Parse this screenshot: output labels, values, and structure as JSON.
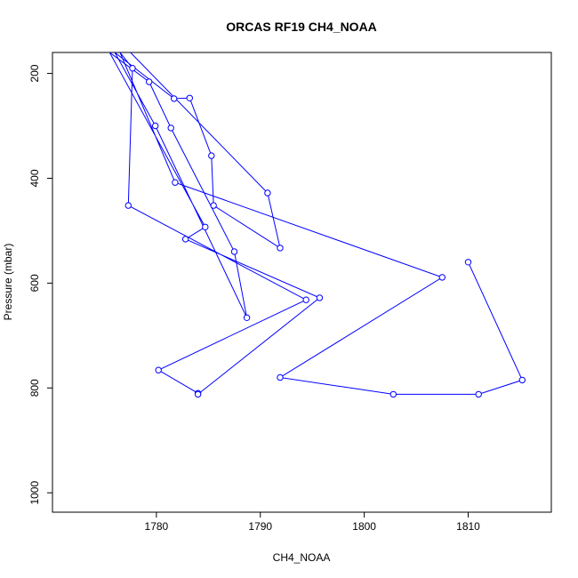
{
  "chart_data": {
    "type": "line",
    "title": "ORCAS RF19 CH4_NOAA",
    "xlabel": "CH4_NOAA",
    "ylabel": "Pressure (mbar)",
    "xlim": [
      1770,
      1818
    ],
    "ylim": [
      1037,
      160
    ],
    "y_reversed": true,
    "x_ticks": [
      1780,
      1790,
      1800,
      1810
    ],
    "y_ticks": [
      200,
      400,
      600,
      800,
      1000
    ],
    "grid": false,
    "legend": "none",
    "color": "#0000ff",
    "marker": "open-circle",
    "series": [
      {
        "points": [
          {
            "x": 1810.0,
            "y": 560
          },
          {
            "x": 1815.2,
            "y": 785
          },
          {
            "x": 1811.0,
            "y": 812
          },
          {
            "x": 1802.8,
            "y": 812
          },
          {
            "x": 1791.9,
            "y": 780
          },
          {
            "x": 1807.5,
            "y": 589
          },
          {
            "x": 1781.8,
            "y": 408
          },
          {
            "x": 1776.5,
            "y": 160
          },
          {
            "x": 1777.7,
            "y": 190
          },
          {
            "x": 1777.3,
            "y": 452
          },
          {
            "x": 1794.4,
            "y": 632
          },
          {
            "x": 1780.2,
            "y": 766
          },
          {
            "x": 1784.0,
            "y": 810
          },
          {
            "x": 1784.0,
            "y": 812
          },
          {
            "x": 1795.7,
            "y": 628
          },
          {
            "x": 1782.8,
            "y": 516
          },
          {
            "x": 1784.7,
            "y": 493
          },
          {
            "x": 1775.5,
            "y": 160
          },
          {
            "x": 1779.3,
            "y": 216
          },
          {
            "x": 1781.4,
            "y": 304
          },
          {
            "x": 1787.5,
            "y": 540
          },
          {
            "x": 1788.7,
            "y": 666
          },
          {
            "x": 1779.9,
            "y": 300
          },
          {
            "x": 1776.0,
            "y": 160
          },
          {
            "x": 1781.7,
            "y": 248
          },
          {
            "x": 1783.2,
            "y": 247
          },
          {
            "x": 1785.3,
            "y": 357
          },
          {
            "x": 1785.5,
            "y": 452
          },
          {
            "x": 1791.9,
            "y": 533
          },
          {
            "x": 1790.7,
            "y": 428
          },
          {
            "x": 1777.5,
            "y": 160
          }
        ]
      }
    ]
  }
}
